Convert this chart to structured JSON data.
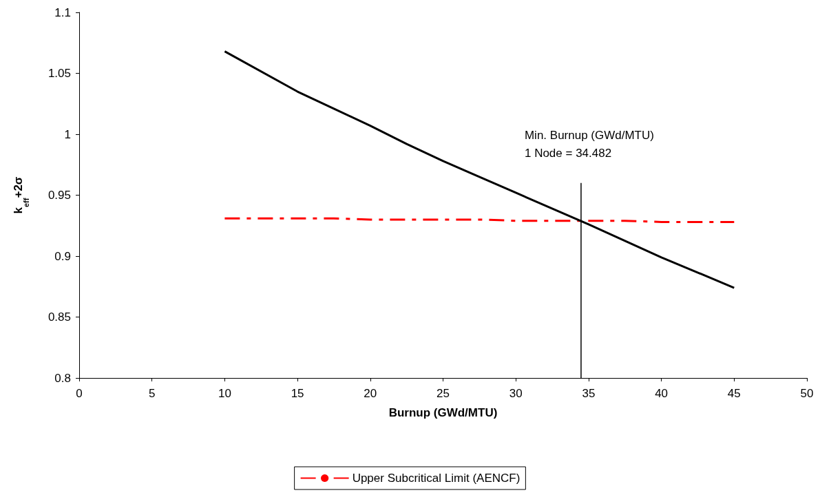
{
  "chart_data": {
    "type": "line",
    "xlabel": "Burnup (GWd/MTU)",
    "ylabel": "k$_{eff}$+2σ",
    "xlim": [
      0,
      50
    ],
    "xticks": [
      0,
      5,
      10,
      15,
      20,
      25,
      30,
      35,
      40,
      45,
      50
    ],
    "ylim": [
      0.8,
      1.1
    ],
    "yticks": [
      0.8,
      0.85,
      0.9,
      0.95,
      1,
      1.05,
      1.1
    ],
    "grid": false,
    "legend": "bottom",
    "marker": "none",
    "series": [
      {
        "color": "#000000",
        "line_style": "solid",
        "x": [
          10,
          15,
          17.5,
          20,
          22.5,
          25,
          30,
          35,
          40,
          45
        ],
        "values": [
          1.068,
          1.035,
          1.021,
          1.007,
          0.992,
          0.978,
          0.952,
          0.926,
          0.899,
          0.874
        ]
      },
      {
        "name": "Upper Subcritical Limit (AENCF)",
        "color": "#ff0000",
        "line_style": "dashed",
        "x": [
          10,
          17.5,
          20,
          27.5,
          30,
          37.5,
          40,
          45
        ],
        "values": [
          0.931,
          0.931,
          0.93,
          0.93,
          0.929,
          0.929,
          0.928,
          0.928
        ]
      },
      {
        "color": "#000000",
        "line_style": "solid",
        "x": [
          34.482,
          34.482
        ],
        "values": [
          0.8,
          0.96
        ]
      }
    ],
    "annotations": [
      {
        "text": "Min. Burnup (GWd/MTU)\n1 Node = 34.482",
        "x": 34.482,
        "y": 0.96
      }
    ]
  }
}
